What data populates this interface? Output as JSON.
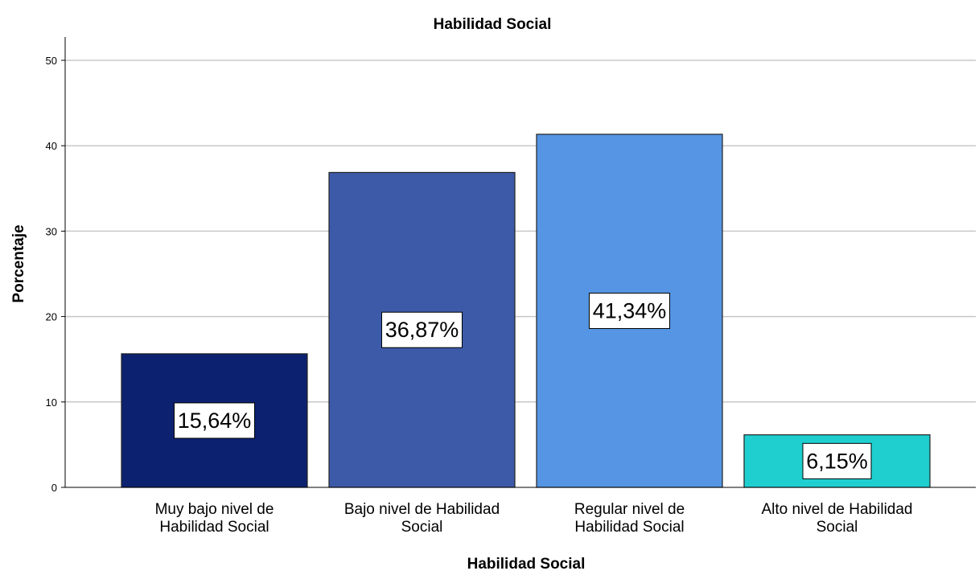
{
  "chart_data": {
    "type": "bar",
    "title": "Habilidad Social",
    "xlabel": "Habilidad Social",
    "ylabel": "Porcentaje",
    "categories": [
      [
        "Muy bajo nivel de",
        "Habilidad Social"
      ],
      [
        "Bajo nivel de Habilidad",
        "Social"
      ],
      [
        "Regular nivel de",
        "Habilidad Social"
      ],
      [
        "Alto nivel de Habilidad",
        "Social"
      ]
    ],
    "values": [
      15.64,
      36.87,
      41.34,
      6.15
    ],
    "data_labels": [
      "15,64%",
      "36,87%",
      "41,34%",
      "6,15%"
    ],
    "colors": [
      "#0c2270",
      "#3d5aa8",
      "#5595e3",
      "#1fcfcf"
    ],
    "ylim": [
      0,
      50
    ],
    "yticks": [
      0,
      10,
      20,
      30,
      40,
      50
    ],
    "grid": true,
    "legend": "none"
  }
}
